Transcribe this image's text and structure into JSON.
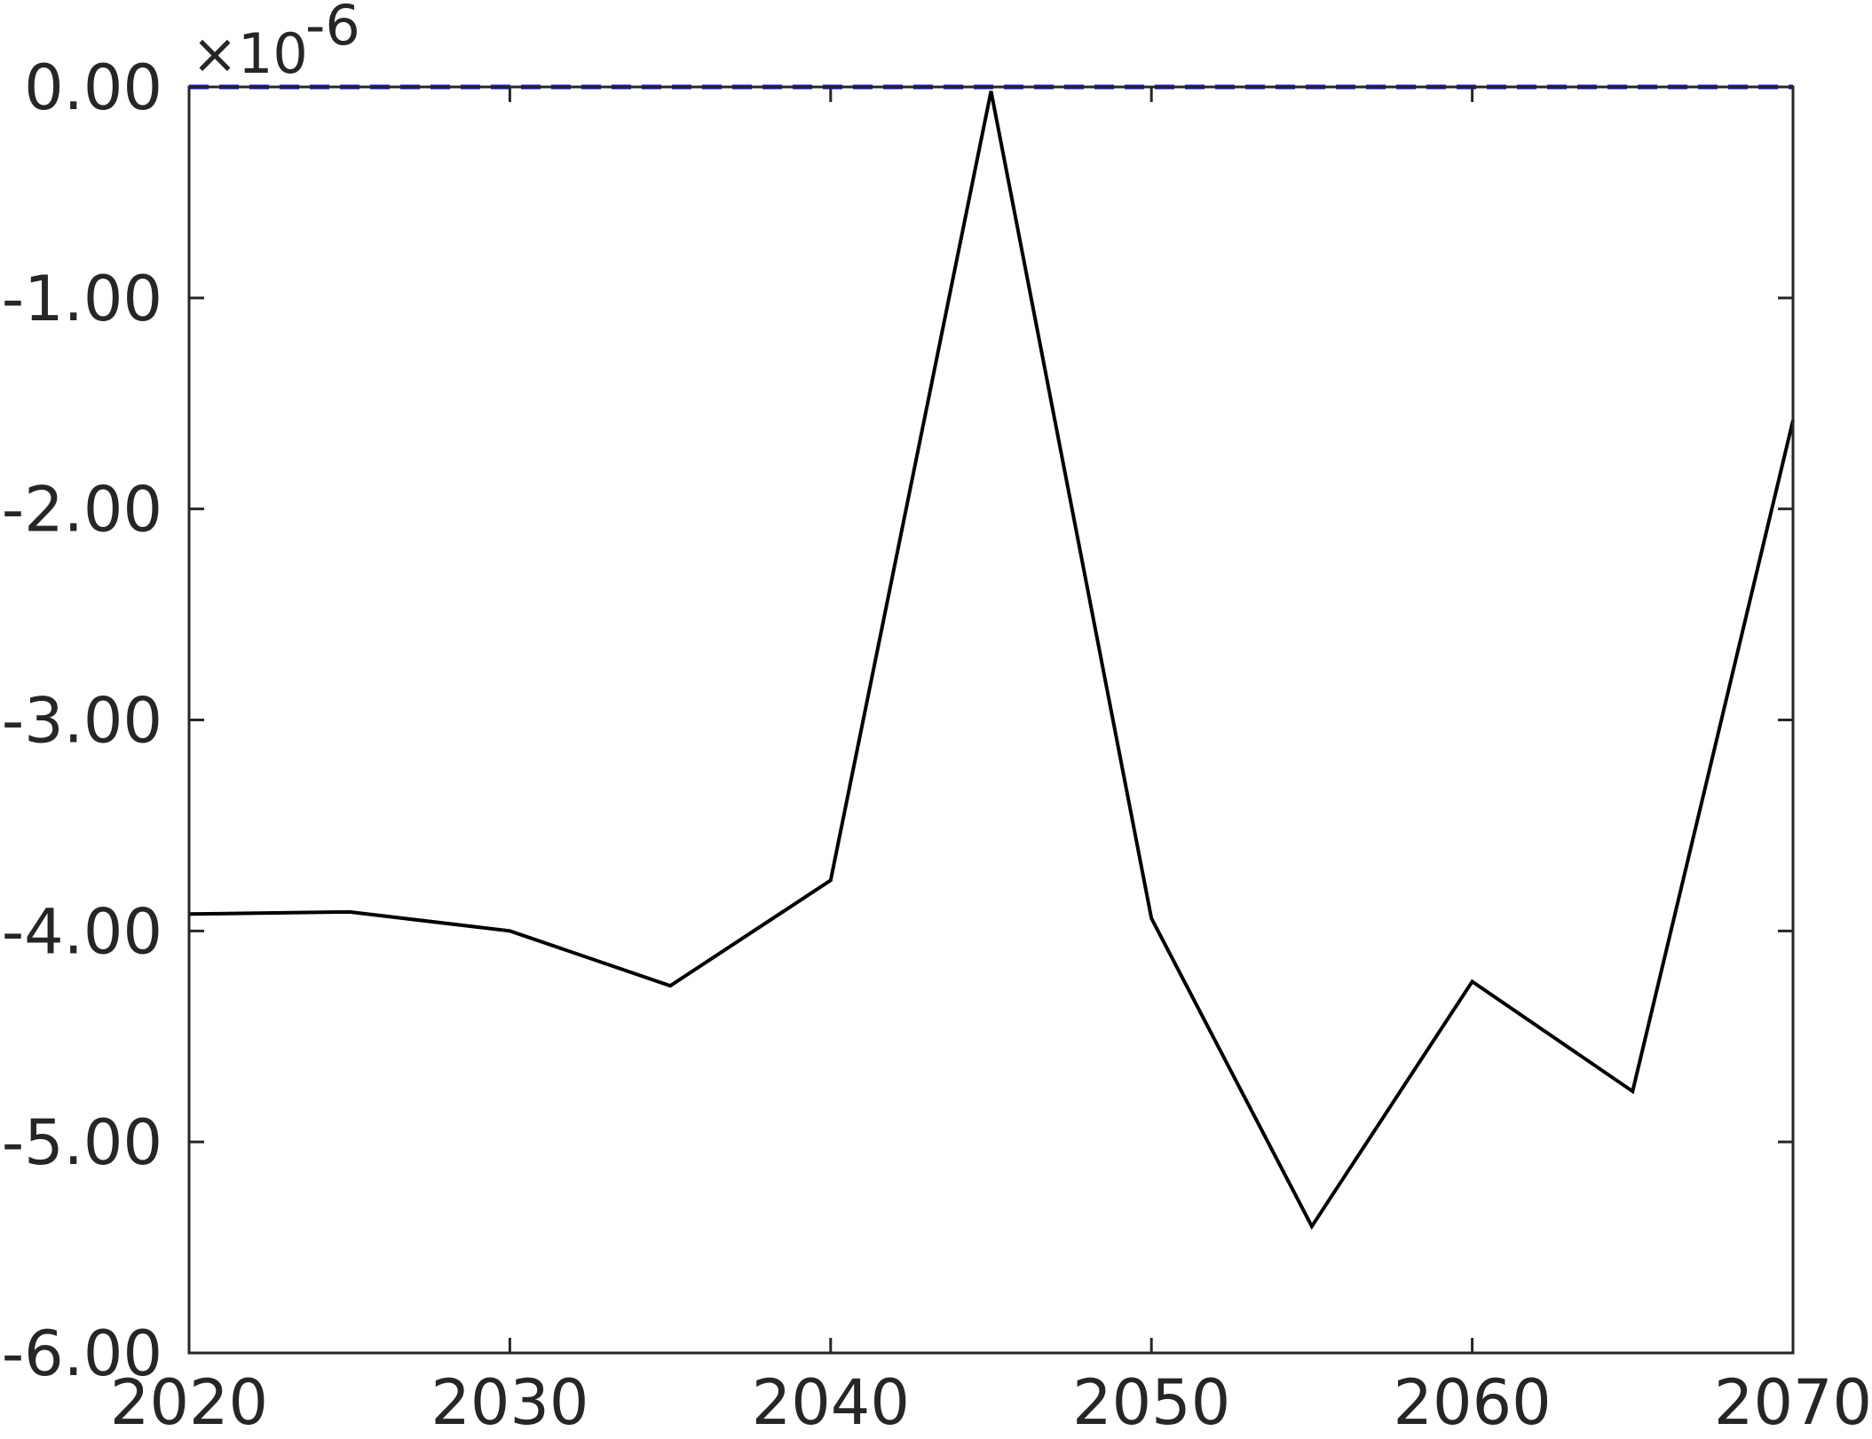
{
  "chart_data": {
    "type": "line",
    "title": "",
    "xlabel": "",
    "ylabel": "",
    "xlim": [
      2020,
      2070
    ],
    "ylim": [
      -6.0,
      0.0
    ],
    "x_ticks": [
      2020,
      2030,
      2040,
      2050,
      2060,
      2070
    ],
    "x_tick_labels": [
      "2020",
      "2030",
      "2040",
      "2050",
      "2060",
      "2070"
    ],
    "y_ticks": [
      0,
      -1,
      -2,
      -3,
      -4,
      -5,
      -6
    ],
    "y_tick_labels": [
      "0.00",
      "-1.00",
      "-2.00",
      "-3.00",
      "-4.00",
      "-5.00",
      "-6.00"
    ],
    "y_exponent": {
      "prefix": "×10",
      "power": "-6"
    },
    "grid": false,
    "series": [
      {
        "color": "#000000",
        "style": "solid",
        "x": [
          2020,
          2025,
          2030,
          2035,
          2040,
          2045,
          2050,
          2055,
          2060,
          2065,
          2070
        ],
        "y": [
          -3.92,
          -3.91,
          -4.0,
          -4.26,
          -3.76,
          -0.02,
          -3.94,
          -5.4,
          -4.24,
          -4.76,
          -1.58
        ]
      },
      {
        "color": "#0000ff",
        "style": "dashed",
        "x": [
          2020,
          2070
        ],
        "y": [
          0.0,
          0.0
        ]
      }
    ]
  }
}
